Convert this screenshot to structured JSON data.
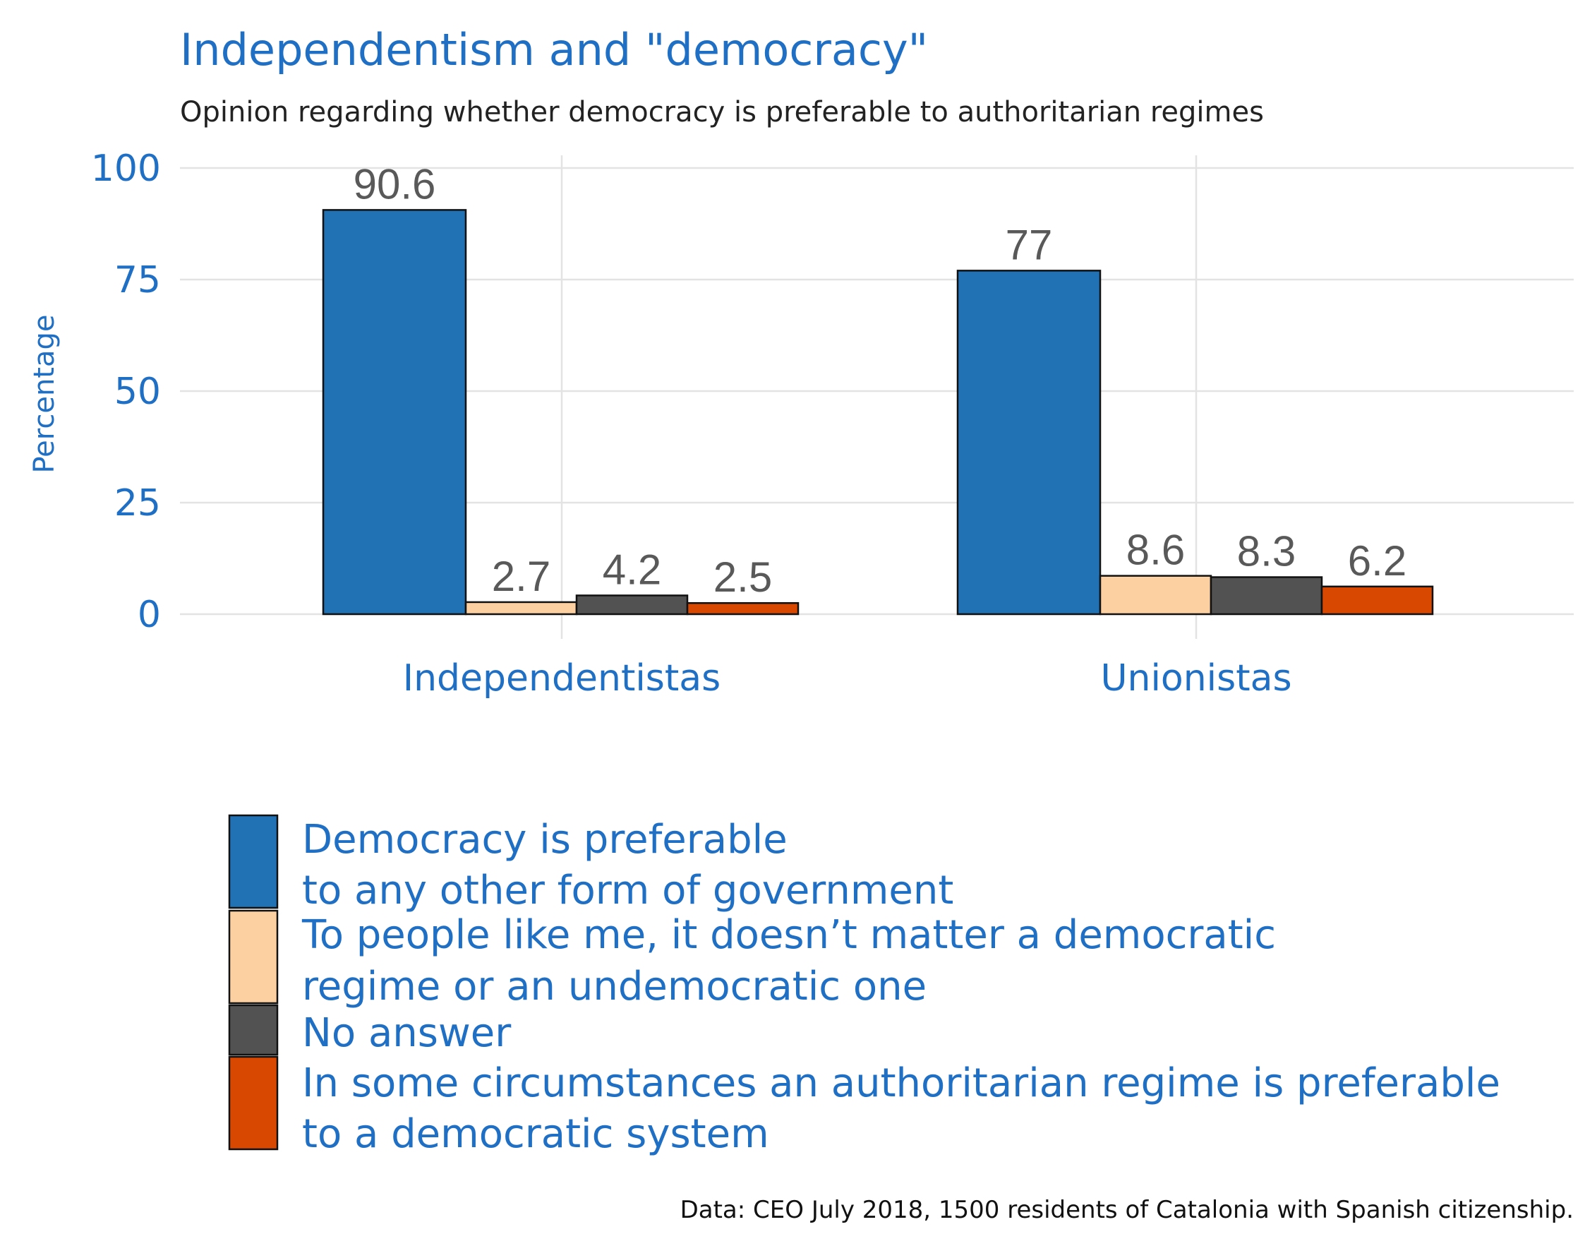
{
  "chart_data": {
    "type": "bar",
    "title": "Independentism and \"democracy\"",
    "subtitle": "Opinion regarding whether democracy is preferable to authoritarian regimes",
    "xlabel": "",
    "ylabel": "Percentage",
    "ylim": [
      0,
      100
    ],
    "yticks": [
      "0",
      "25",
      "50",
      "75",
      "100"
    ],
    "grid": true,
    "legend_position": "bottom",
    "categories": [
      "Independentistas",
      "Unionistas"
    ],
    "series": [
      {
        "name": "Democracy is preferable to any other form of government",
        "legend_lines": [
          "Democracy is preferable",
          "to any other form of government"
        ],
        "color": "#2171b5",
        "values": [
          90.6,
          77
        ],
        "labels": [
          "90.6",
          "77"
        ]
      },
      {
        "name": "To people like me, it doesn’t matter a democratic regime or an undemocratic one",
        "legend_lines": [
          "To people like me, it doesn’t matter a democratic",
          "regime or an undemocratic one"
        ],
        "color": "#fdd0a2",
        "values": [
          2.7,
          8.6
        ],
        "labels": [
          "2.7",
          "8.6"
        ]
      },
      {
        "name": "No answer",
        "legend_lines": [
          "No answer"
        ],
        "color": "#525252",
        "values": [
          4.2,
          8.3
        ],
        "labels": [
          "4.2",
          "8.3"
        ]
      },
      {
        "name": "In some circumstances an authoritarian regime is preferable to a democratic system",
        "legend_lines": [
          "In some circumstances an authoritarian regime is preferable",
          "to a democratic system"
        ],
        "color": "#d94801",
        "values": [
          2.5,
          6.2
        ],
        "labels": [
          "2.5",
          "6.2"
        ]
      }
    ],
    "caption": "Data: CEO July 2018, 1500 residents of Catalonia with Spanish citizenship."
  }
}
